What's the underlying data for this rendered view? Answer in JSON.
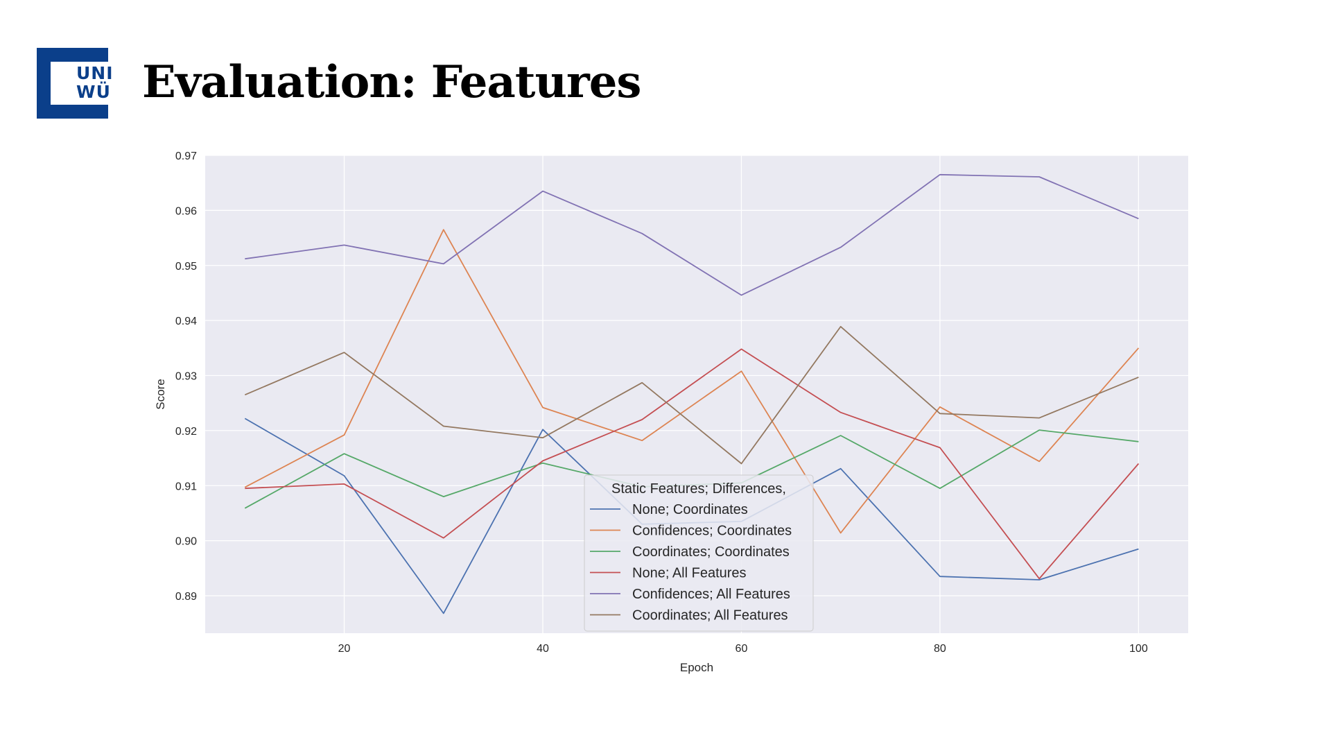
{
  "slide": {
    "title": "Evaluation: Features",
    "logo_text": "UNI\nWÜ"
  },
  "chart_data": {
    "type": "line",
    "title": "",
    "xlabel": "Epoch",
    "ylabel": "Score",
    "xlim": [
      6,
      105
    ],
    "ylim": [
      0.8832,
      0.97
    ],
    "x_ticks": [
      20,
      40,
      60,
      80,
      100
    ],
    "y_ticks": [
      0.89,
      0.9,
      0.91,
      0.92,
      0.93,
      0.94,
      0.95,
      0.96,
      0.97
    ],
    "y_tick_labels": [
      "0.89",
      "0.90",
      "0.91",
      "0.92",
      "0.93",
      "0.94",
      "0.95",
      "0.96",
      "0.97"
    ],
    "grid": true,
    "background_color": "#eaeaf2",
    "legend": {
      "title": "Static Features; Differences,",
      "placement": "lower-center"
    },
    "x": [
      10,
      20,
      30,
      40,
      50,
      60,
      70,
      80,
      90,
      100
    ],
    "series": [
      {
        "name": "None; Coordinates",
        "color": "#4c72b0",
        "values": [
          0.9222,
          0.9118,
          0.8868,
          0.9202,
          0.903,
          0.9035,
          0.9131,
          0.8935,
          0.8929,
          0.8985
        ]
      },
      {
        "name": "Confidences; Coordinates",
        "color": "#dd8452",
        "values": [
          0.9097,
          0.9192,
          0.9565,
          0.9242,
          0.9182,
          0.9308,
          0.9014,
          0.9243,
          0.9144,
          0.935
        ]
      },
      {
        "name": "Coordinates; Coordinates",
        "color": "#55a868",
        "values": [
          0.9059,
          0.9158,
          0.908,
          0.9141,
          0.9098,
          0.9105,
          0.9191,
          0.9095,
          0.9201,
          0.918
        ]
      },
      {
        "name": "None; All Features",
        "color": "#c44e52",
        "values": [
          0.9095,
          0.9103,
          0.9005,
          0.9145,
          0.922,
          0.9348,
          0.9233,
          0.9169,
          0.8931,
          0.914
        ]
      },
      {
        "name": "Confidences; All Features",
        "color": "#8172b3",
        "values": [
          0.9512,
          0.9537,
          0.9503,
          0.9635,
          0.9558,
          0.9446,
          0.9533,
          0.9665,
          0.9661,
          0.9585
        ]
      },
      {
        "name": "Coordinates; All Features",
        "color": "#937860",
        "values": [
          0.9265,
          0.9342,
          0.9208,
          0.9187,
          0.9287,
          0.914,
          0.9389,
          0.9231,
          0.9223,
          0.9297
        ]
      }
    ]
  }
}
